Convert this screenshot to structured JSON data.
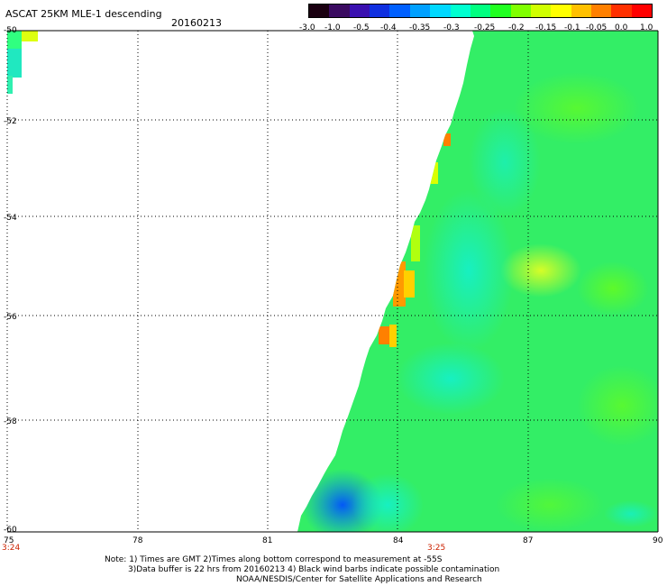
{
  "header": {
    "title": "ASCAT 25KM MLE-1 descending",
    "date": "20160213"
  },
  "colorbar": {
    "labels": [
      "-3.0",
      "-1.0",
      "-0.5",
      "-0.4",
      "-0.35",
      "-0.3",
      "-0.25",
      "-0.2",
      "-0.15",
      "-0.1",
      "-0.05",
      "0.0",
      "1.0"
    ],
    "colors": [
      "#1a0010",
      "#3a0a60",
      "#3a10b0",
      "#1030e0",
      "#0060ff",
      "#00a0ff",
      "#00d8ff",
      "#00ffd0",
      "#00ff80",
      "#20ff20",
      "#80ff00",
      "#d0ff00",
      "#ffff00",
      "#ffc000",
      "#ff8000",
      "#ff3000",
      "#ff0000"
    ]
  },
  "map": {
    "y_labels": [
      "-50",
      "-52",
      "-54",
      "-56",
      "-58",
      "-60"
    ],
    "x_labels": [
      "75",
      "78",
      "81",
      "84",
      "87",
      "90"
    ],
    "time_labels": [
      "3:24",
      "3:25"
    ],
    "colors": {
      "grid": "#000000",
      "time": "#cc2200",
      "swath_base": "#33ee66"
    }
  },
  "notes": {
    "line1": "Note: 1) Times are GMT 2)Times along bottom correspond to measurement at -55S",
    "line2": "3)Data buffer is 22 hrs from 20160213 4) Black wind barbs indicate possible contamination",
    "line3": "NOAA/NESDIS/Center for Satellite Applications and Research"
  }
}
